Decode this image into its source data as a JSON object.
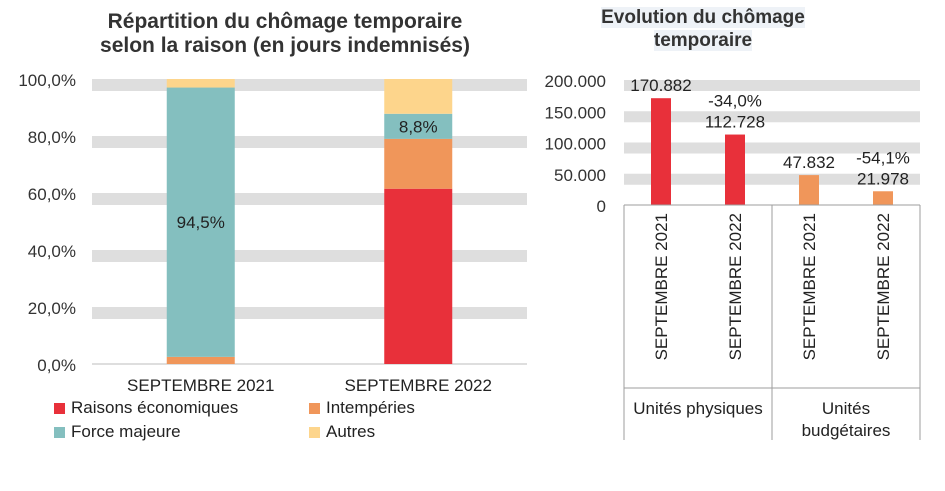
{
  "chart_data": [
    {
      "type": "bar",
      "stacked": true,
      "title": "Répartition du chômage temporaire selon la raison (en jours indemnisés)",
      "title_lines": [
        "Répartition du chômage temporaire",
        "selon la raison (en jours indemnisés)"
      ],
      "categories": [
        "SEPTEMBRE 2021",
        "SEPTEMBRE 2022"
      ],
      "ylim": [
        0,
        100
      ],
      "yticks": [
        "0,0%",
        "20,0%",
        "40,0%",
        "60,0%",
        "80,0%",
        "100,0%"
      ],
      "grid": true,
      "legend_position": "bottom",
      "series": [
        {
          "name": "Raisons économiques",
          "color": "#e8303a",
          "values": [
            0,
            61.5
          ]
        },
        {
          "name": "Intempéries",
          "color": "#f0965a",
          "values": [
            2.5,
            17.5
          ]
        },
        {
          "name": "Force majeure",
          "color": "#84bfbf",
          "values": [
            94.5,
            8.8
          ]
        },
        {
          "name": "Autres",
          "color": "#fdd58c",
          "values": [
            3.0,
            12.2
          ]
        }
      ],
      "data_labels": [
        {
          "series": 2,
          "category": 0,
          "text": "94,5%"
        },
        {
          "series": 2,
          "category": 1,
          "text": "8,8%"
        }
      ]
    },
    {
      "type": "bar",
      "title": "Evolution du chômage temporaire",
      "title_lines": [
        "Evolution du chômage",
        "temporaire"
      ],
      "ylim": [
        0,
        200000
      ],
      "yticks": [
        "0",
        "50.000",
        "100.000",
        "150.000",
        "200.000"
      ],
      "grid": true,
      "groups": [
        {
          "label_lines": [
            "Unités physiques"
          ],
          "color": "#e8303a"
        },
        {
          "label_lines": [
            "Unités",
            "budgétaires"
          ],
          "color": "#f0965a"
        }
      ],
      "bars": [
        {
          "group": 0,
          "category": "SEPTEMBRE 2021",
          "value": 170882,
          "label": "170.882",
          "change": ""
        },
        {
          "group": 0,
          "category": "SEPTEMBRE 2022",
          "value": 112728,
          "label": "112.728",
          "change": "-34,0%"
        },
        {
          "group": 1,
          "category": "SEPTEMBRE 2021",
          "value": 47832,
          "label": "47.832",
          "change": ""
        },
        {
          "group": 1,
          "category": "SEPTEMBRE 2022",
          "value": 21978,
          "label": "21.978",
          "change": "-54,1%"
        }
      ]
    }
  ]
}
